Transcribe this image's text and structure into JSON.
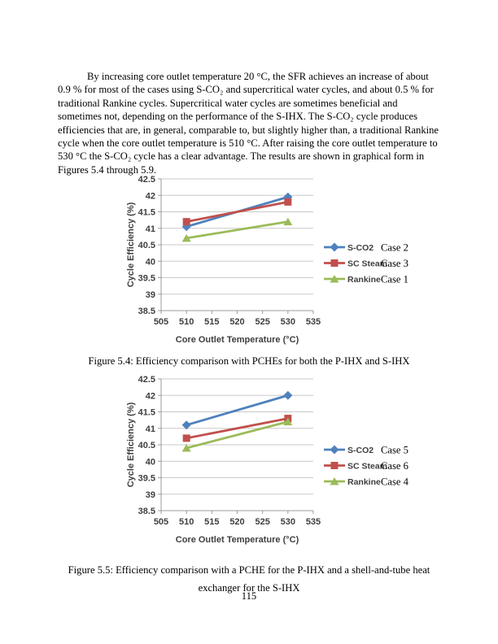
{
  "page": {
    "paragraph": "By increasing core outlet temperature 20 °C, the SFR achieves an increase of about 0.9 % for most of the cases using S-CO₂ and supercritical water cycles, and about 0.5 % for traditional Rankine cycles.  Supercritical water cycles are sometimes beneficial and sometimes not, depending on the performance of the S-IHX.  The S-CO₂ cycle produces efficiencies that are, in general, comparable to, but slightly higher than, a traditional Rankine cycle when the core outlet temperature is 510 °C.  After raising the core outlet temperature to 530 °C the S-CO₂ cycle has a clear advantage.  The results are shown in graphical form in Figures 5.4 through 5.9.",
    "page_number": "115"
  },
  "figure_5_4": {
    "caption": "Figure 5.4: Efficiency comparison with PCHEs for both the P-IHX and S-IHX"
  },
  "figure_5_5": {
    "caption_line_1": "Figure 5.5: Efficiency comparison with a PCHE for the P-IHX and a shell-and-tube heat",
    "caption_line_2": "exchanger for the S-IHX"
  },
  "chart_data": [
    {
      "type": "line",
      "title": "",
      "xlabel": "Core Outlet Temperature (°C)",
      "ylabel": "Cycle Efficiency (%)",
      "x": [
        510,
        530
      ],
      "xlim": [
        505,
        535
      ],
      "xticks": [
        505,
        510,
        515,
        520,
        525,
        530,
        535
      ],
      "ylim": [
        38.5,
        42.5
      ],
      "yticks": [
        38.5,
        39,
        39.5,
        40,
        40.5,
        41,
        41.5,
        42,
        42.5
      ],
      "grid": true,
      "grid_color": "#c9c9c9",
      "axis_color": "#9b9b9b",
      "legend_position": "right",
      "series": [
        {
          "name": "S-CO2",
          "case_label": "Case 2",
          "color": "#4F81BD",
          "marker": "diamond",
          "values": [
            41.05,
            41.95
          ]
        },
        {
          "name": "SC Steam",
          "case_label": "Case 3",
          "color": "#C0504D",
          "marker": "square",
          "values": [
            41.2,
            41.8
          ]
        },
        {
          "name": "Rankine",
          "case_label": "Case 1",
          "color": "#9BBB59",
          "marker": "triangle",
          "values": [
            40.7,
            41.2
          ]
        }
      ]
    },
    {
      "type": "line",
      "title": "",
      "xlabel": "Core Outlet Temperature (°C)",
      "ylabel": "Cycle Efficiency (%)",
      "x": [
        510,
        530
      ],
      "xlim": [
        505,
        535
      ],
      "xticks": [
        505,
        510,
        515,
        520,
        525,
        530,
        535
      ],
      "ylim": [
        38.5,
        42.5
      ],
      "yticks": [
        38.5,
        39,
        39.5,
        40,
        40.5,
        41,
        41.5,
        42,
        42.5
      ],
      "grid": true,
      "grid_color": "#c9c9c9",
      "axis_color": "#9b9b9b",
      "legend_position": "right",
      "series": [
        {
          "name": "S-CO2",
          "case_label": "Case 5",
          "color": "#4F81BD",
          "marker": "diamond",
          "values": [
            41.1,
            42.0
          ]
        },
        {
          "name": "SC Steam",
          "case_label": "Case 6",
          "color": "#C0504D",
          "marker": "square",
          "values": [
            40.7,
            41.3
          ]
        },
        {
          "name": "Rankine",
          "case_label": "Case 4",
          "color": "#9BBB59",
          "marker": "triangle",
          "values": [
            40.4,
            41.2
          ]
        }
      ]
    }
  ]
}
